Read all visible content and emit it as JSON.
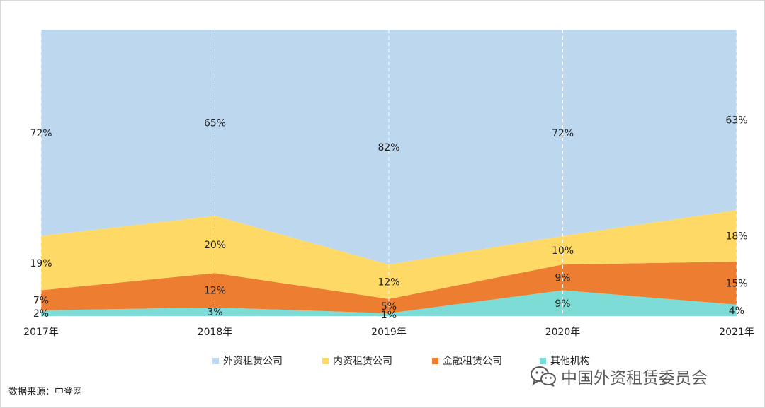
{
  "chart_data": {
    "type": "area",
    "stacked": true,
    "normalized_percent": true,
    "categories": [
      "2017年",
      "2018年",
      "2019年",
      "2020年",
      "2021年"
    ],
    "series": [
      {
        "name": "其他机构",
        "color": "#7ddcd6",
        "values": [
          2,
          3,
          1,
          9,
          4
        ]
      },
      {
        "name": "金融租赁公司",
        "color": "#ed7d31",
        "values": [
          7,
          12,
          5,
          9,
          15
        ]
      },
      {
        "name": "内资租赁公司",
        "color": "#ffd966",
        "values": [
          19,
          20,
          12,
          10,
          18
        ]
      },
      {
        "name": "外资租赁公司",
        "color": "#bdd7ee",
        "values": [
          72,
          65,
          82,
          72,
          63
        ]
      }
    ],
    "data_labels": {
      "其他机构": [
        "2%",
        "3%",
        "1%",
        "9%",
        "4%"
      ],
      "金融租赁公司": [
        "7%",
        "12%",
        "5%",
        "9%",
        "15%"
      ],
      "内资租赁公司": [
        "19%",
        "20%",
        "12%",
        "10%",
        "18%"
      ],
      "外资租赁公司": [
        "72%",
        "65%",
        "82%",
        "72%",
        "63%"
      ]
    },
    "legend_order": [
      "外资租赁公司",
      "内资租赁公司",
      "金融租赁公司",
      "其他机构"
    ],
    "legend_position": "bottom",
    "ylim": [
      0,
      100
    ],
    "grid": "vertical dashed"
  },
  "source_text": "数据来源：中登网",
  "watermark_text": "中国外资租赁委员会",
  "watermark_icon": "wechat-icon"
}
